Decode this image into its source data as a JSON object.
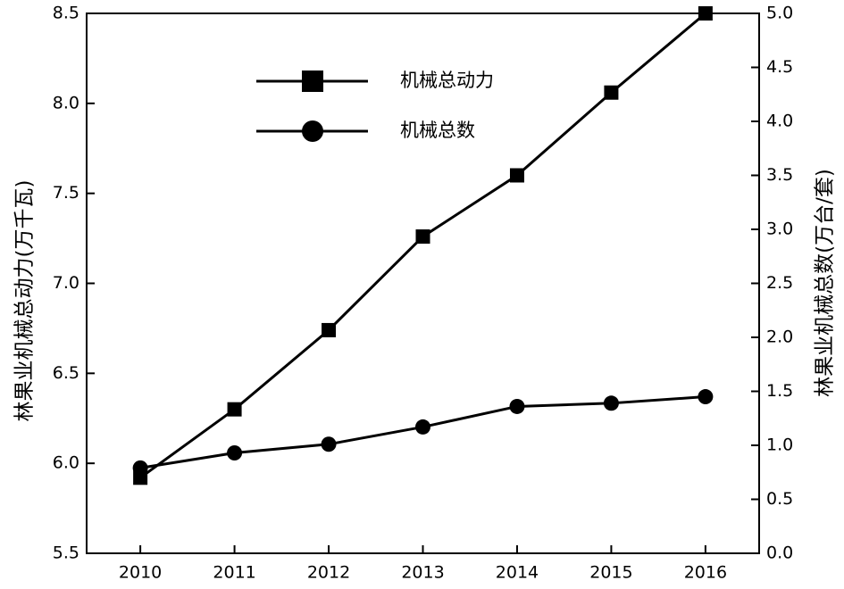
{
  "chart_data": {
    "type": "line",
    "x": [
      2010,
      2011,
      2012,
      2013,
      2014,
      2015,
      2016
    ],
    "xlim": [
      2009.43,
      2016.57
    ],
    "xticks": [
      2010,
      2011,
      2012,
      2013,
      2014,
      2015,
      2016
    ],
    "ylabel": "林果业机械总动力(万千瓦)",
    "y2label": "林果业机械总数(万台/套)",
    "ylim": [
      5.5,
      8.5
    ],
    "yticks": [
      5.5,
      {
        "value": 6,
        "label": "6.0"
      },
      6.5,
      {
        "value": 7,
        "label": "7.0"
      },
      7.5,
      {
        "value": 8,
        "label": "8.0"
      },
      8.5
    ],
    "y2lim": [
      0,
      5
    ],
    "y2ticks": [
      {
        "value": 0,
        "label": "0.0"
      },
      0.5,
      {
        "value": 1,
        "label": "1.0"
      },
      1.5,
      {
        "value": 2,
        "label": "2.0"
      },
      2.5,
      {
        "value": 3,
        "label": "3.0"
      },
      3.5,
      {
        "value": 4,
        "label": "4.0"
      },
      4.5,
      {
        "value": 5,
        "label": "5.0"
      }
    ],
    "legend": "upper left",
    "series": [
      {
        "name": "机械总动力",
        "color": "#000000",
        "marker": "square",
        "values": [
          5.92,
          6.3,
          6.74,
          7.26,
          7.6,
          8.06,
          8.5
        ]
      },
      {
        "name": "机械总数",
        "color": "#000000",
        "marker": "circle",
        "axis": "y2",
        "values": [
          0.79,
          0.93,
          1.01,
          1.17,
          1.36,
          1.39,
          1.45
        ]
      }
    ]
  }
}
